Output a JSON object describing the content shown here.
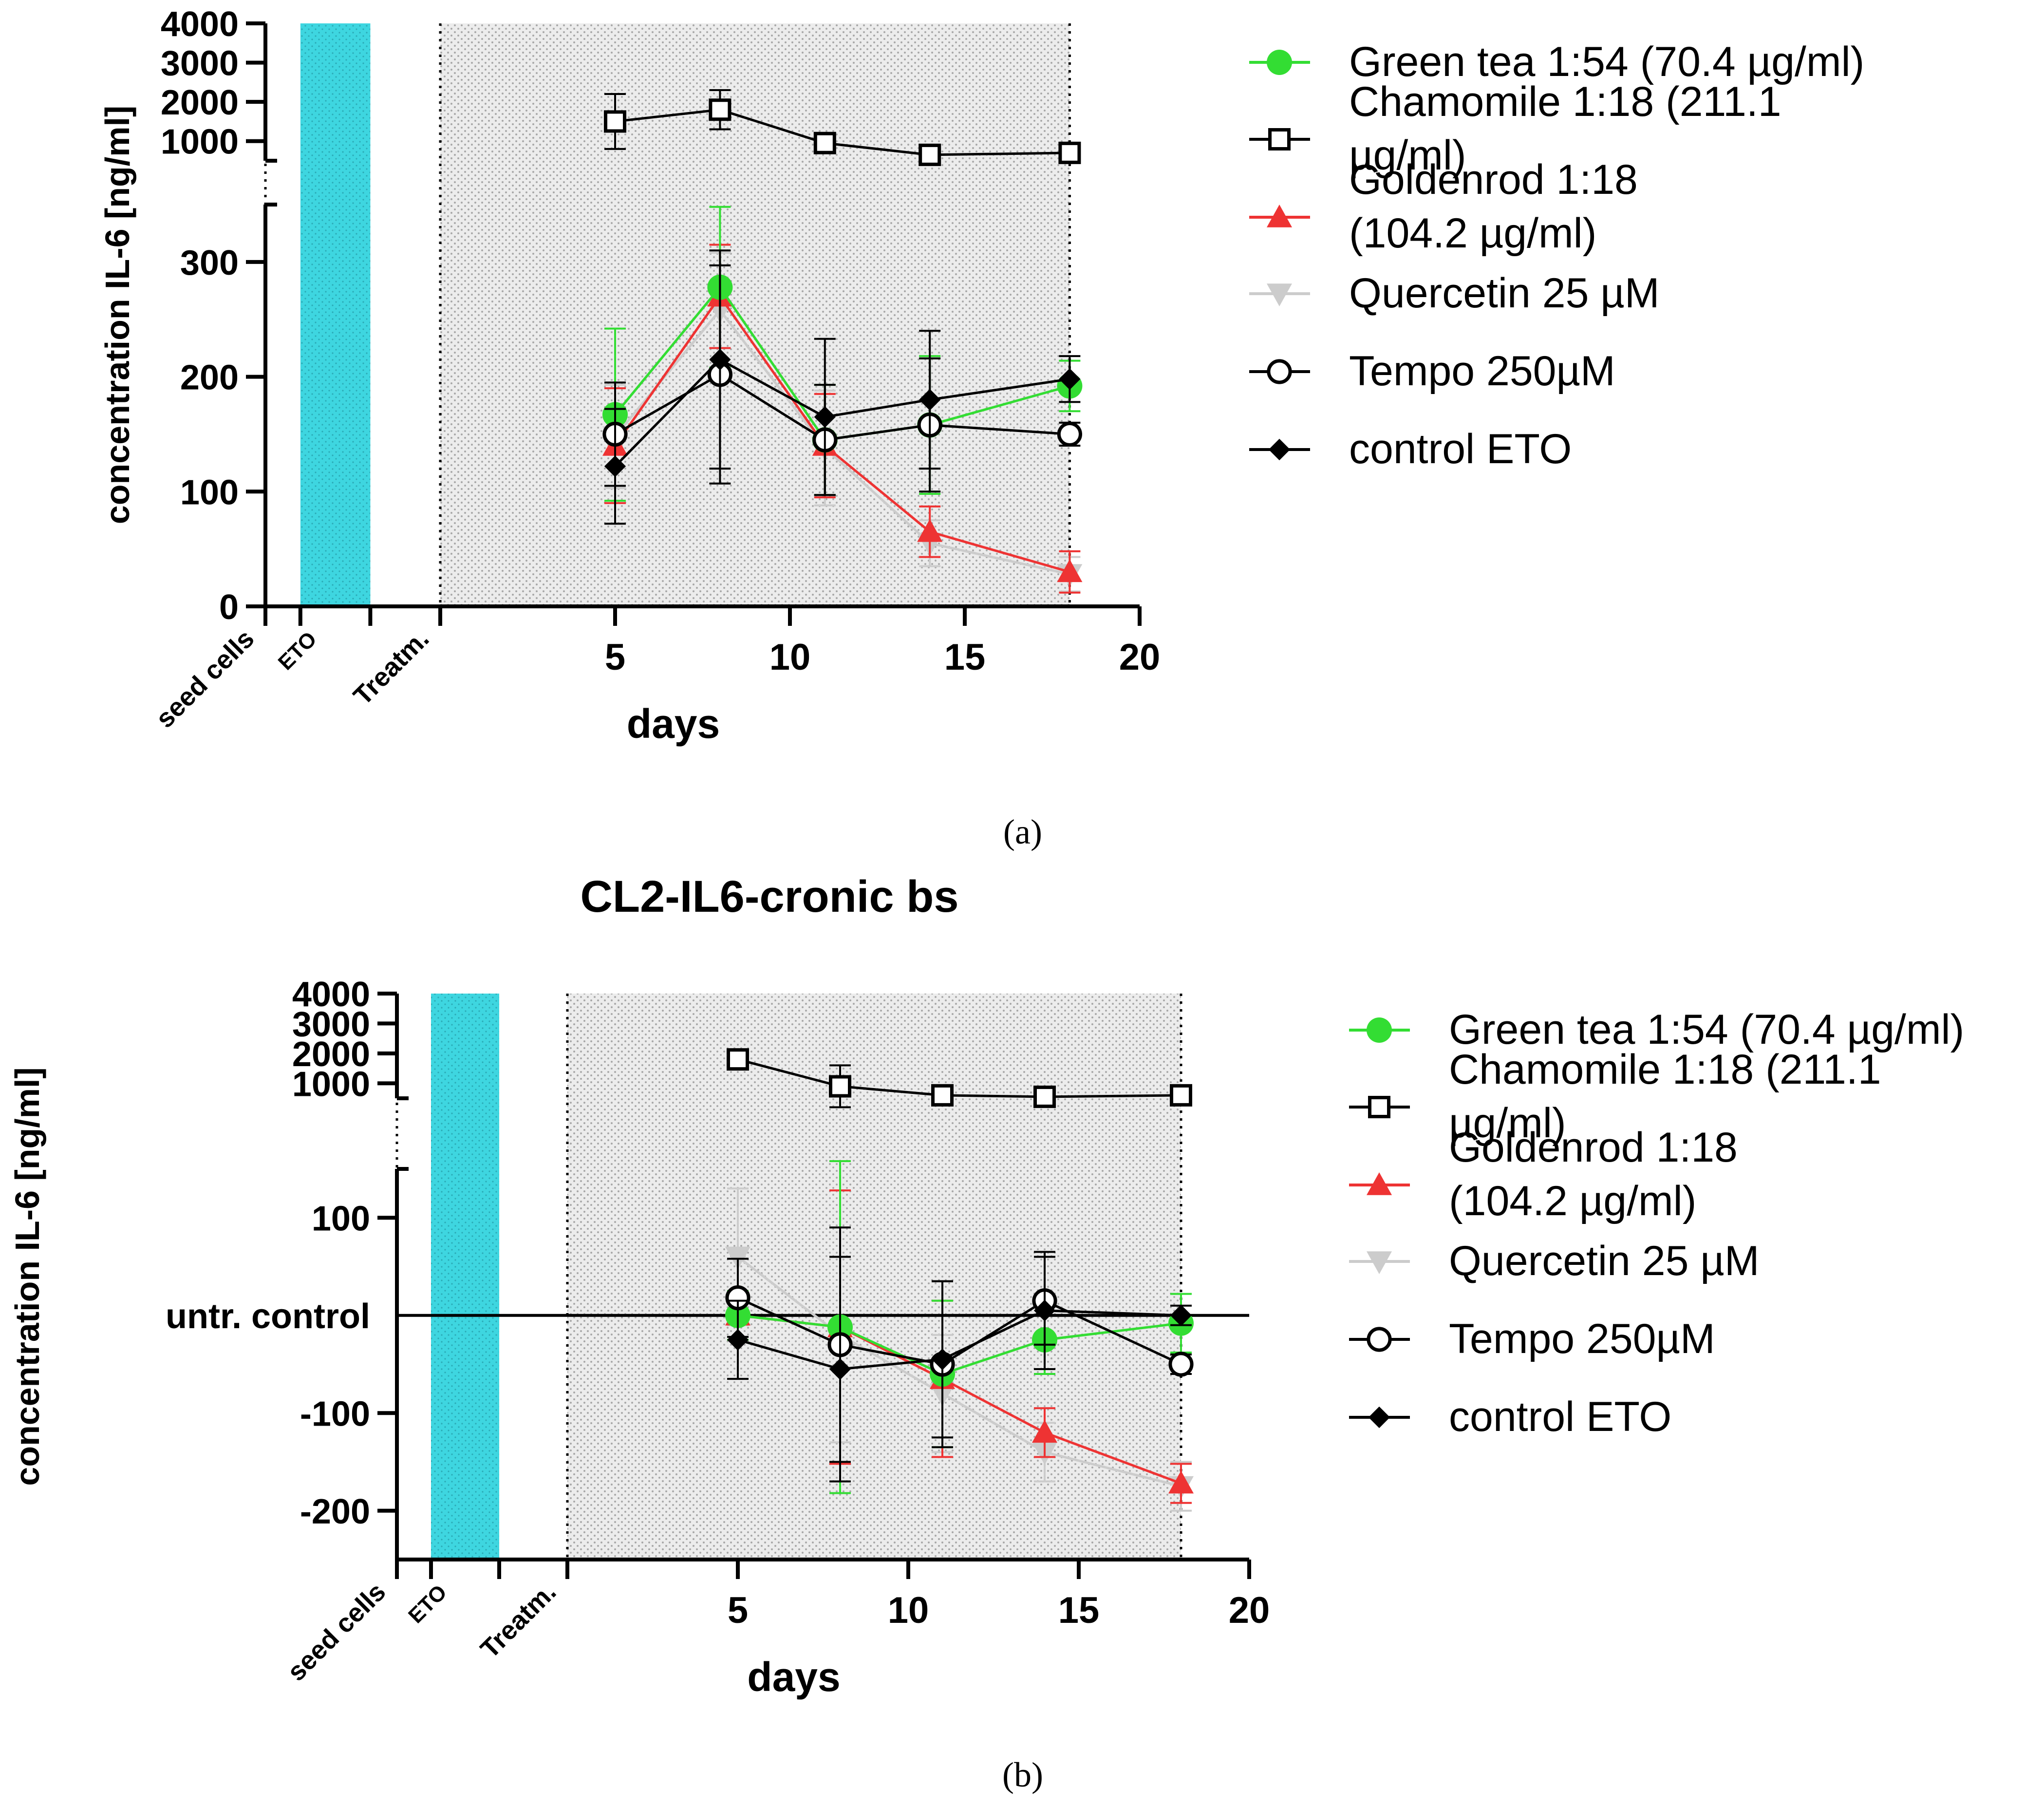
{
  "legend_labels": {
    "green_tea": [
      "Green tea 1:54 (70.4 µg/ml)"
    ],
    "chamomile": [
      "Chamomile 1:18 (211.1",
      "µg/ml)"
    ],
    "goldenrod": [
      "Goldenrod 1:18",
      "(104.2 µg/ml)"
    ],
    "quercetin": [
      "Quercetin 25 µM"
    ],
    "tempo": [
      "Tempo 250µM"
    ],
    "control_eto": [
      "control ETO"
    ]
  },
  "colors": {
    "green_tea": "#33dd33",
    "chamomile": "#000000",
    "goldenrod": "#ee3333",
    "quercetin": "#cccccc",
    "tempo": "#000000",
    "control_eto": "#000000",
    "eto_band": "#3ed6e0",
    "treatment_region": "#d8d8d8"
  },
  "chart_data": [
    {
      "type": "line",
      "panel_label": "a",
      "caption": "(a)",
      "title": "",
      "xlabel": "days",
      "ylabel": "concentration IL-6 [ng/ml]",
      "xlim": [
        -5,
        20
      ],
      "x_ticks": [
        5,
        10,
        15,
        20
      ],
      "y_axis": {
        "lower": {
          "range": [
            0,
            350
          ],
          "ticks": [
            0,
            100,
            200,
            300
          ]
        },
        "upper": {
          "range": [
            500,
            4000
          ],
          "ticks": [
            1000,
            2000,
            3000,
            4000
          ]
        }
      },
      "timeline_labels": [
        {
          "text": "seed cells",
          "day": -5
        },
        {
          "text": "ETO",
          "day": -3.5
        },
        {
          "text": "Treatm.",
          "day": 0
        }
      ],
      "x": [
        5,
        8,
        11,
        14,
        18
      ],
      "series": [
        {
          "key": "green_tea",
          "values": [
            167,
            278,
            145,
            158,
            192
          ],
          "errors": [
            75,
            70,
            48,
            60,
            22
          ],
          "marker": "circle-filled"
        },
        {
          "key": "chamomile",
          "values": [
            1500,
            1800,
            950,
            650,
            700
          ],
          "errors": [
            700,
            500,
            200,
            150,
            150
          ],
          "marker": "square-open",
          "axis": "upper"
        },
        {
          "key": "goldenrod",
          "values": [
            140,
            270,
            140,
            65,
            30
          ],
          "errors": [
            50,
            45,
            45,
            22,
            18
          ],
          "marker": "triangle-up"
        },
        {
          "key": "quercetin",
          "values": [
            148,
            258,
            138,
            55,
            28
          ],
          "errors": [
            45,
            50,
            50,
            20,
            15
          ],
          "marker": "triangle-down"
        },
        {
          "key": "tempo",
          "values": [
            150,
            202,
            145,
            158,
            150
          ],
          "errors": [
            45,
            95,
            48,
            58,
            10
          ],
          "marker": "circle-open"
        },
        {
          "key": "control_eto",
          "values": [
            122,
            215,
            165,
            180,
            198
          ],
          "errors": [
            50,
            95,
            68,
            60,
            20
          ],
          "marker": "diamond-filled"
        }
      ]
    },
    {
      "type": "line",
      "panel_label": "b",
      "caption": "(b)",
      "title": "CL2-IL6-cronic bs",
      "xlabel": "days",
      "ylabel": "concentration IL-6 [ng/ml]",
      "xlim": [
        -5,
        20
      ],
      "x_ticks": [
        5,
        10,
        15,
        20
      ],
      "reference_line": {
        "y": 0,
        "label": "untr. control"
      },
      "y_axis": {
        "lower": {
          "range": [
            -250,
            150
          ],
          "ticks": [
            -200,
            -100,
            100
          ]
        },
        "upper": {
          "range": [
            500,
            4000
          ],
          "ticks": [
            1000,
            2000,
            3000,
            4000
          ]
        }
      },
      "timeline_labels": [
        {
          "text": "seed cells",
          "day": -5
        },
        {
          "text": "ETO",
          "day": -3.5
        },
        {
          "text": "Treatm.",
          "day": 0
        }
      ],
      "x": [
        5,
        8,
        11,
        14,
        18
      ],
      "series": [
        {
          "key": "green_tea",
          "values": [
            0,
            -12,
            -60,
            -25,
            -8
          ],
          "errors": [
            25,
            170,
            75,
            35,
            30
          ],
          "marker": "circle-filled"
        },
        {
          "key": "chamomile",
          "values": [
            1800,
            900,
            600,
            550,
            600
          ],
          "errors": [
            150,
            700,
            120,
            80,
            80
          ],
          "marker": "square-open",
          "axis": "upper"
        },
        {
          "key": "goldenrod",
          "values": [
            0,
            -12,
            -65,
            -120,
            -172
          ],
          "errors": [
            25,
            140,
            80,
            25,
            20
          ],
          "marker": "triangle-up"
        },
        {
          "key": "quercetin",
          "values": [
            60,
            -20,
            -80,
            -140,
            -175
          ],
          "errors": [
            70,
            110,
            60,
            30,
            25
          ],
          "marker": "triangle-down"
        },
        {
          "key": "tempo",
          "values": [
            18,
            -30,
            -50,
            15,
            -50
          ],
          "errors": [
            40,
            120,
            85,
            45,
            10
          ],
          "marker": "circle-open"
        },
        {
          "key": "control_eto",
          "values": [
            -25,
            -55,
            -45,
            5,
            0
          ],
          "errors": [
            40,
            115,
            80,
            60,
            10
          ],
          "marker": "diamond-filled"
        }
      ]
    }
  ]
}
